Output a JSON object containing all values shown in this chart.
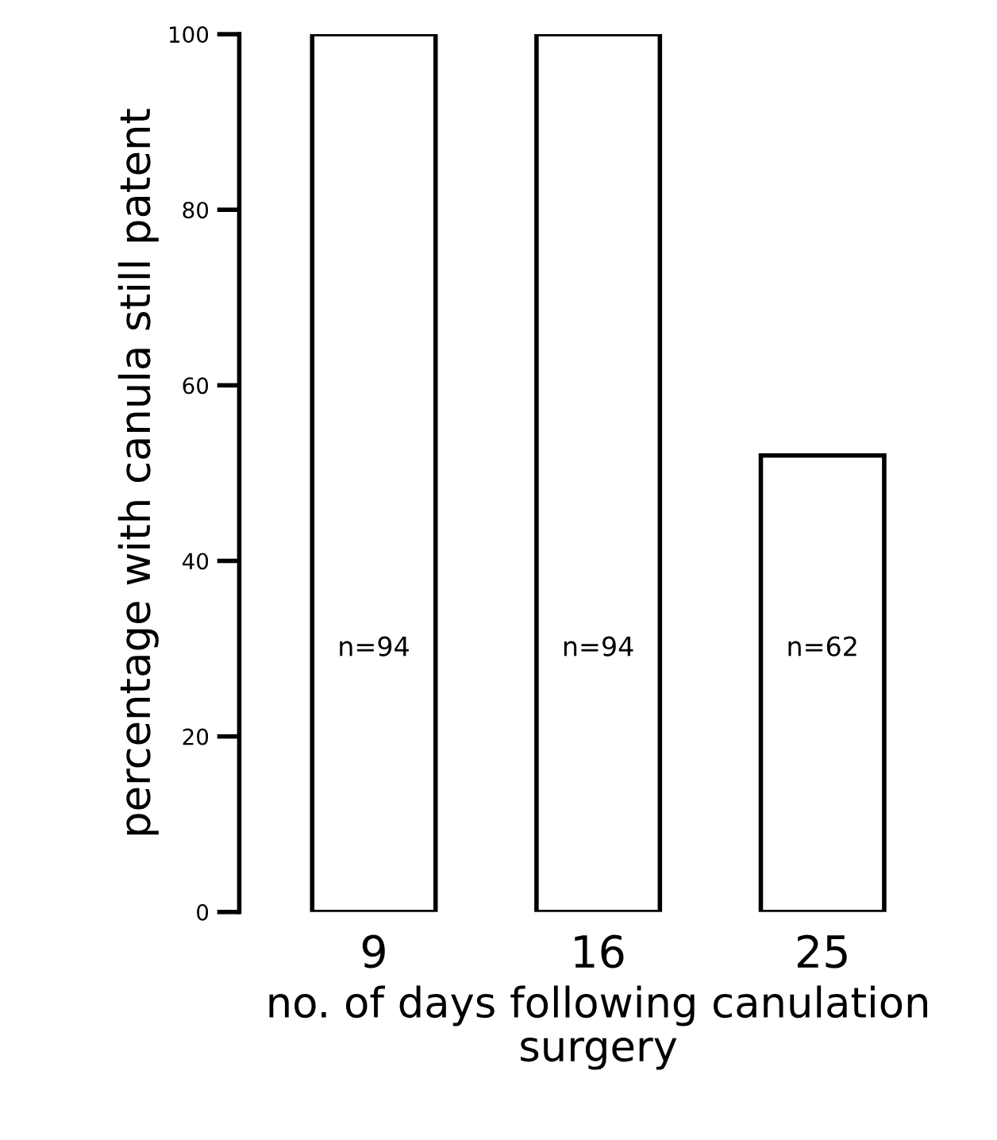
{
  "chart_data": {
    "type": "bar",
    "xlabel": "no. of days following canulation\nsurgery",
    "ylabel": "percentage with canula still patent",
    "categories": [
      "9",
      "16",
      "25"
    ],
    "values": [
      100,
      100,
      52
    ],
    "color": "#ffffff",
    "ylim": [
      0,
      100
    ],
    "yticks": [
      0,
      20,
      40,
      60,
      80,
      100
    ],
    "grid": false,
    "annotations": [
      "n=94",
      "n=94",
      "n=62"
    ]
  }
}
